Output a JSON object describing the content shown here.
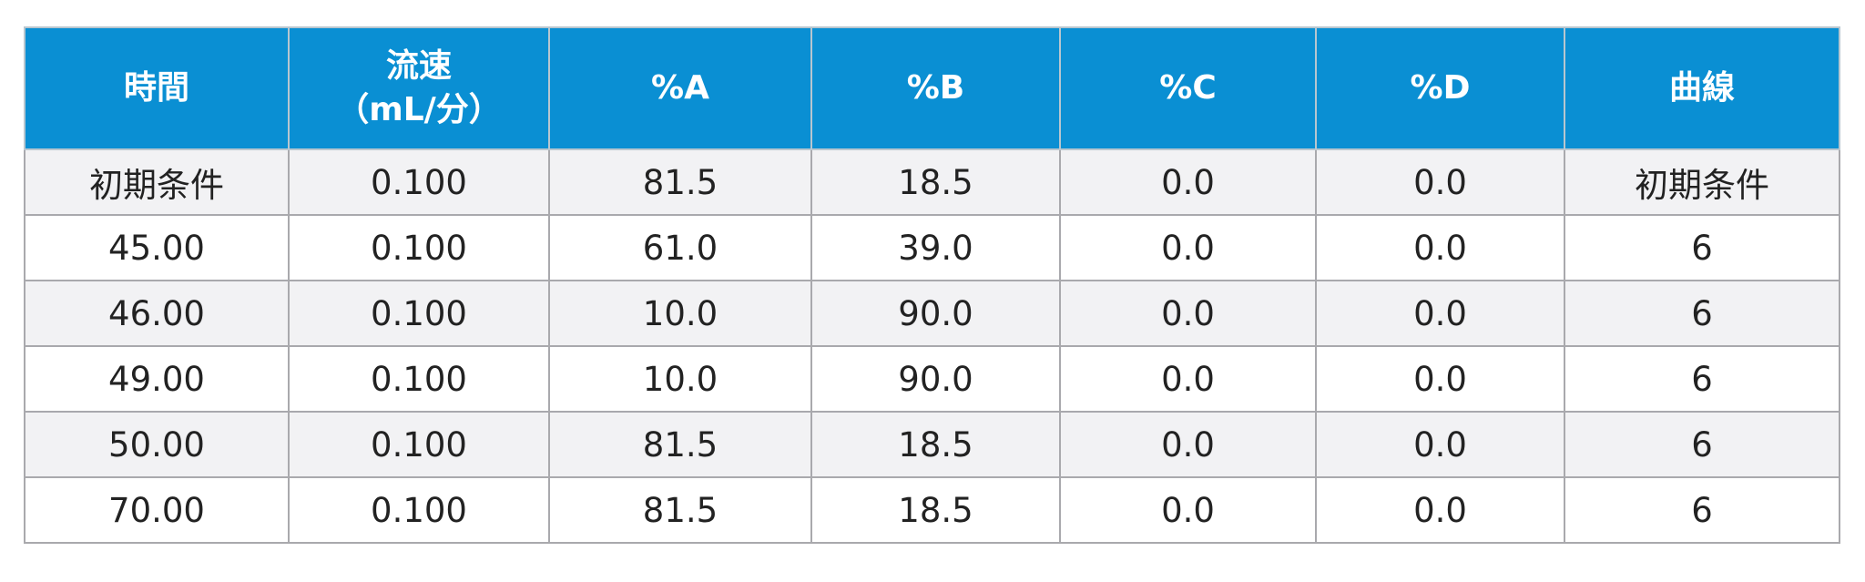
{
  "table": {
    "headers": {
      "time": "時間",
      "flow_line1": "流速",
      "flow_line2": "（mL/分）",
      "a": "%A",
      "b": "%B",
      "c": "%C",
      "d": "%D",
      "curve": "曲線"
    },
    "rows": [
      {
        "time": "初期条件",
        "flow": "0.100",
        "a": "81.5",
        "b": "18.5",
        "c": "0.0",
        "d": "0.0",
        "curve": "初期条件"
      },
      {
        "time": "45.00",
        "flow": "0.100",
        "a": "61.0",
        "b": "39.0",
        "c": "0.0",
        "d": "0.0",
        "curve": "6"
      },
      {
        "time": "46.00",
        "flow": "0.100",
        "a": "10.0",
        "b": "90.0",
        "c": "0.0",
        "d": "0.0",
        "curve": "6"
      },
      {
        "time": "49.00",
        "flow": "0.100",
        "a": "10.0",
        "b": "90.0",
        "c": "0.0",
        "d": "0.0",
        "curve": "6"
      },
      {
        "time": "50.00",
        "flow": "0.100",
        "a": "81.5",
        "b": "18.5",
        "c": "0.0",
        "d": "0.0",
        "curve": "6"
      },
      {
        "time": "70.00",
        "flow": "0.100",
        "a": "81.5",
        "b": "18.5",
        "c": "0.0",
        "d": "0.0",
        "curve": "6"
      }
    ],
    "colors": {
      "header_bg": "#0a8fd3",
      "header_text": "#ffffff",
      "row_alt_bg": "#f2f2f4",
      "border": "#a9a9ad"
    }
  }
}
